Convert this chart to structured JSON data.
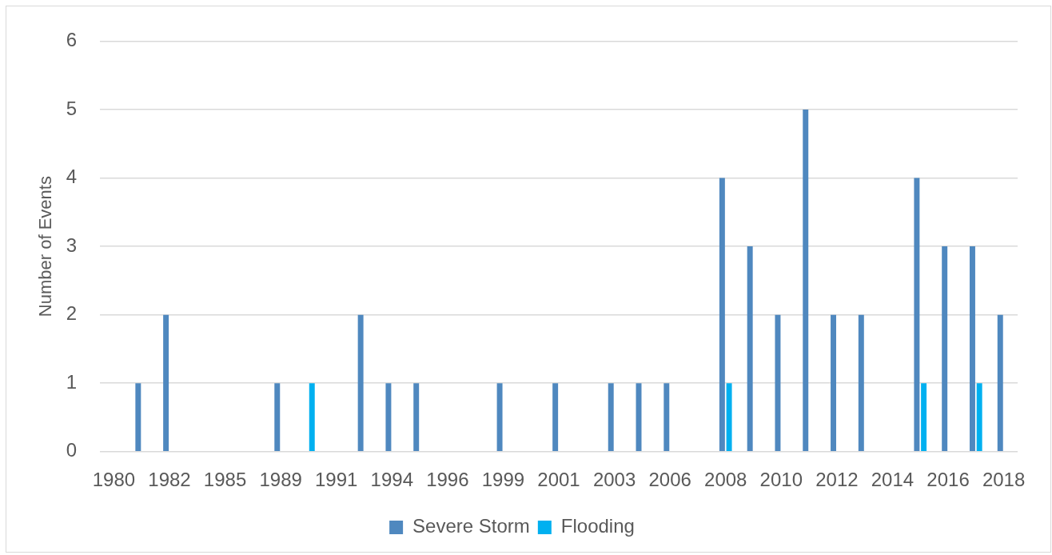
{
  "chart_data": {
    "type": "bar",
    "categories": [
      "1980",
      null,
      "1982",
      null,
      "1985",
      null,
      "1989",
      null,
      "1991",
      null,
      "1994",
      null,
      "1996",
      null,
      "1999",
      null,
      "2001",
      null,
      "2003",
      null,
      "2006",
      null,
      "2008",
      null,
      "2010",
      null,
      "2012",
      null,
      "2014",
      null,
      "2016",
      null,
      "2018"
    ],
    "series": [
      {
        "name": "Severe Storm",
        "color": "#4f88bf",
        "values": [
          0,
          1,
          2,
          0,
          0,
          0,
          1,
          0,
          0,
          2,
          1,
          1,
          0,
          0,
          1,
          0,
          1,
          0,
          1,
          1,
          1,
          0,
          4,
          3,
          2,
          5,
          2,
          2,
          0,
          4,
          3,
          3,
          2
        ]
      },
      {
        "name": "Flooding",
        "color": "#00b0f0",
        "values": [
          0,
          0,
          0,
          0,
          0,
          0,
          0,
          1,
          0,
          0,
          0,
          0,
          0,
          0,
          0,
          0,
          0,
          0,
          0,
          0,
          0,
          0,
          1,
          0,
          0,
          0,
          0,
          0,
          0,
          1,
          0,
          1,
          0
        ]
      }
    ],
    "ylabel": "Number of Events",
    "ylim": [
      0,
      6
    ],
    "yticks": [
      0,
      1,
      2,
      3,
      4,
      5,
      6
    ],
    "grid": "y",
    "legend": "bottom"
  }
}
